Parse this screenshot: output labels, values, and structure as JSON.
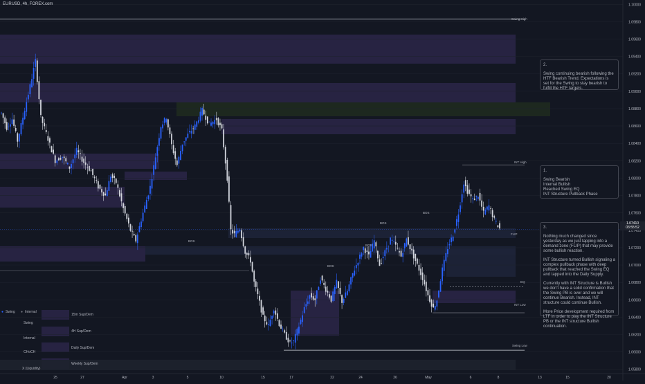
{
  "header": {
    "symbol": "EURUSD, 4h, FOREX.com"
  },
  "notes": [
    {
      "num": "2.",
      "paragraphs": [
        "Swing continuing bearish following the HTF Bearish Trend. Expectations is set for the Swing to stay bearish to fulfill the HTF targets."
      ]
    },
    {
      "num": "1.",
      "paragraphs": [
        "Swing Bearish\nInternal Bullish\nReached Swing EQ\nINT Structure Pullback Phase"
      ]
    },
    {
      "num": "3.",
      "paragraphs": [
        "Nothing much changed since yesterday as we just tapping into a demand zone (FLIP) that may provide some bullish reaction.",
        "INT Structure turned Bullish signaling a complex pullback phase with deep pullback that reached the Swing EQ and tapped into the Daily Supply.",
        "Currently with INT Structure is Bullish we don't have a solid confirmation that the Swing PB is over and we will continue Bearish. Instead, INT structure could continue Bullish.",
        "More Price development required from LTF in order to play the INT Structure PB or the INT structure Bullish continuation."
      ]
    }
  ],
  "legend": {
    "swing_dot": "Swing",
    "internal_dot": "Internal",
    "swing_line": "Swing",
    "internal_line": "Internal",
    "choch": "CHoCH",
    "liquidity": "X (Liquidity)",
    "zones": [
      "15m Sup/Dem",
      "4H Sup/Dem",
      "Daily Sup/Dem",
      "Weekly Sup/Dem"
    ]
  },
  "labels": {
    "swing_high": "Swing High",
    "int_high": "INT High",
    "swing_low": "Swing Low",
    "int_low": "INT Low",
    "eq": "EQ",
    "flip": "FLIP",
    "bos": "BOS"
  },
  "price_tag": {
    "price": "1.07410",
    "countdown": "03:55:52"
  },
  "colors": {
    "background": "#131722",
    "bull_candle": "#2962ff",
    "bear_candle": "#d1d4dc",
    "supply_zone": "#2a2546",
    "demand_zone": "#1e2338",
    "daily_zone": "#1f2a1f",
    "grid": "#1e222d"
  },
  "chart_data": {
    "type": "candlestick",
    "title": "EURUSD, 4h, FOREX.com",
    "y_axis": {
      "side": "right",
      "ticks": [
        "1.10000",
        "1.09800",
        "1.09600",
        "1.09400",
        "1.09200",
        "1.09000",
        "1.08800",
        "1.08600",
        "1.08400",
        "1.08200",
        "1.08000",
        "1.07800",
        "1.07600",
        "1.07400",
        "1.07200",
        "1.07000",
        "1.06800",
        "1.06600",
        "1.06400",
        "1.06200",
        "1.06000",
        "1.05800"
      ],
      "ylim": [
        1.0575,
        1.1005
      ]
    },
    "x_axis": {
      "ticks": [
        "25",
        "27",
        "Apr",
        "3",
        "5",
        "10",
        "15",
        "17",
        "22",
        "24",
        "26",
        "May",
        "6",
        "8",
        "13",
        "15",
        "20"
      ]
    },
    "current_price": 1.0741,
    "levels": {
      "swing_high": 1.0983,
      "int_high": 1.0815,
      "swing_low": 1.0602,
      "int_low": 1.0645,
      "eq": 1.0675
    },
    "candle_anchors": [
      [
        0,
        1.0875
      ],
      [
        3,
        1.0858
      ],
      [
        6,
        1.0868
      ],
      [
        9,
        1.0843
      ],
      [
        12,
        1.087
      ],
      [
        16,
        1.0906
      ],
      [
        19,
        1.0935
      ],
      [
        22,
        1.087
      ],
      [
        26,
        1.0845
      ],
      [
        30,
        1.082
      ],
      [
        34,
        1.0825
      ],
      [
        38,
        1.0812
      ],
      [
        42,
        1.0832
      ],
      [
        46,
        1.0818
      ],
      [
        50,
        1.0808
      ],
      [
        54,
        1.079
      ],
      [
        58,
        1.078
      ],
      [
        61,
        1.0803
      ],
      [
        64,
        1.0795
      ],
      [
        68,
        1.0765
      ],
      [
        72,
        1.074
      ],
      [
        75,
        1.0728
      ],
      [
        79,
        1.076
      ],
      [
        83,
        1.079
      ],
      [
        86,
        1.0825
      ],
      [
        89,
        1.086
      ],
      [
        92,
        1.087
      ],
      [
        95,
        1.0838
      ],
      [
        98,
        1.0815
      ],
      [
        101,
        1.084
      ],
      [
        104,
        1.085
      ],
      [
        108,
        1.086
      ],
      [
        112,
        1.0878
      ],
      [
        116,
        1.0862
      ],
      [
        120,
        1.0868
      ],
      [
        123,
        1.0855
      ],
      [
        126,
        1.08
      ],
      [
        128,
        1.074
      ],
      [
        130,
        1.0735
      ],
      [
        133,
        1.0742
      ],
      [
        136,
        1.0715
      ],
      [
        139,
        1.0705
      ],
      [
        141,
        1.068
      ],
      [
        143,
        1.0665
      ],
      [
        146,
        1.064
      ],
      [
        149,
        1.063
      ],
      [
        152,
        1.065
      ],
      [
        155,
        1.0632
      ],
      [
        158,
        1.062
      ],
      [
        161,
        1.061
      ],
      [
        163,
        1.0612
      ],
      [
        166,
        1.063
      ],
      [
        169,
        1.065
      ],
      [
        172,
        1.0665
      ],
      [
        175,
        1.066
      ],
      [
        178,
        1.0685
      ],
      [
        181,
        1.0672
      ],
      [
        184,
        1.066
      ],
      [
        187,
        1.068
      ],
      [
        190,
        1.0658
      ],
      [
        193,
        1.067
      ],
      [
        196,
        1.069
      ],
      [
        199,
        1.0705
      ],
      [
        202,
        1.072
      ],
      [
        205,
        1.071
      ],
      [
        208,
        1.0728
      ],
      [
        211,
        1.07
      ],
      [
        214,
        1.0715
      ],
      [
        217,
        1.073
      ],
      [
        220,
        1.0722
      ],
      [
        223,
        1.071
      ],
      [
        226,
        1.073
      ],
      [
        229,
        1.0715
      ],
      [
        232,
        1.07
      ],
      [
        235,
        1.0685
      ],
      [
        238,
        1.0665
      ],
      [
        241,
        1.065
      ],
      [
        243,
        1.066
      ],
      [
        246,
        1.0695
      ],
      [
        249,
        1.072
      ],
      [
        252,
        1.0735
      ],
      [
        255,
        1.076
      ],
      [
        258,
        1.0795
      ],
      [
        260,
        1.0785
      ],
      [
        263,
        1.0775
      ],
      [
        266,
        1.078
      ],
      [
        269,
        1.076
      ],
      [
        272,
        1.0768
      ],
      [
        275,
        1.0752
      ],
      [
        278,
        1.0742
      ]
    ]
  }
}
